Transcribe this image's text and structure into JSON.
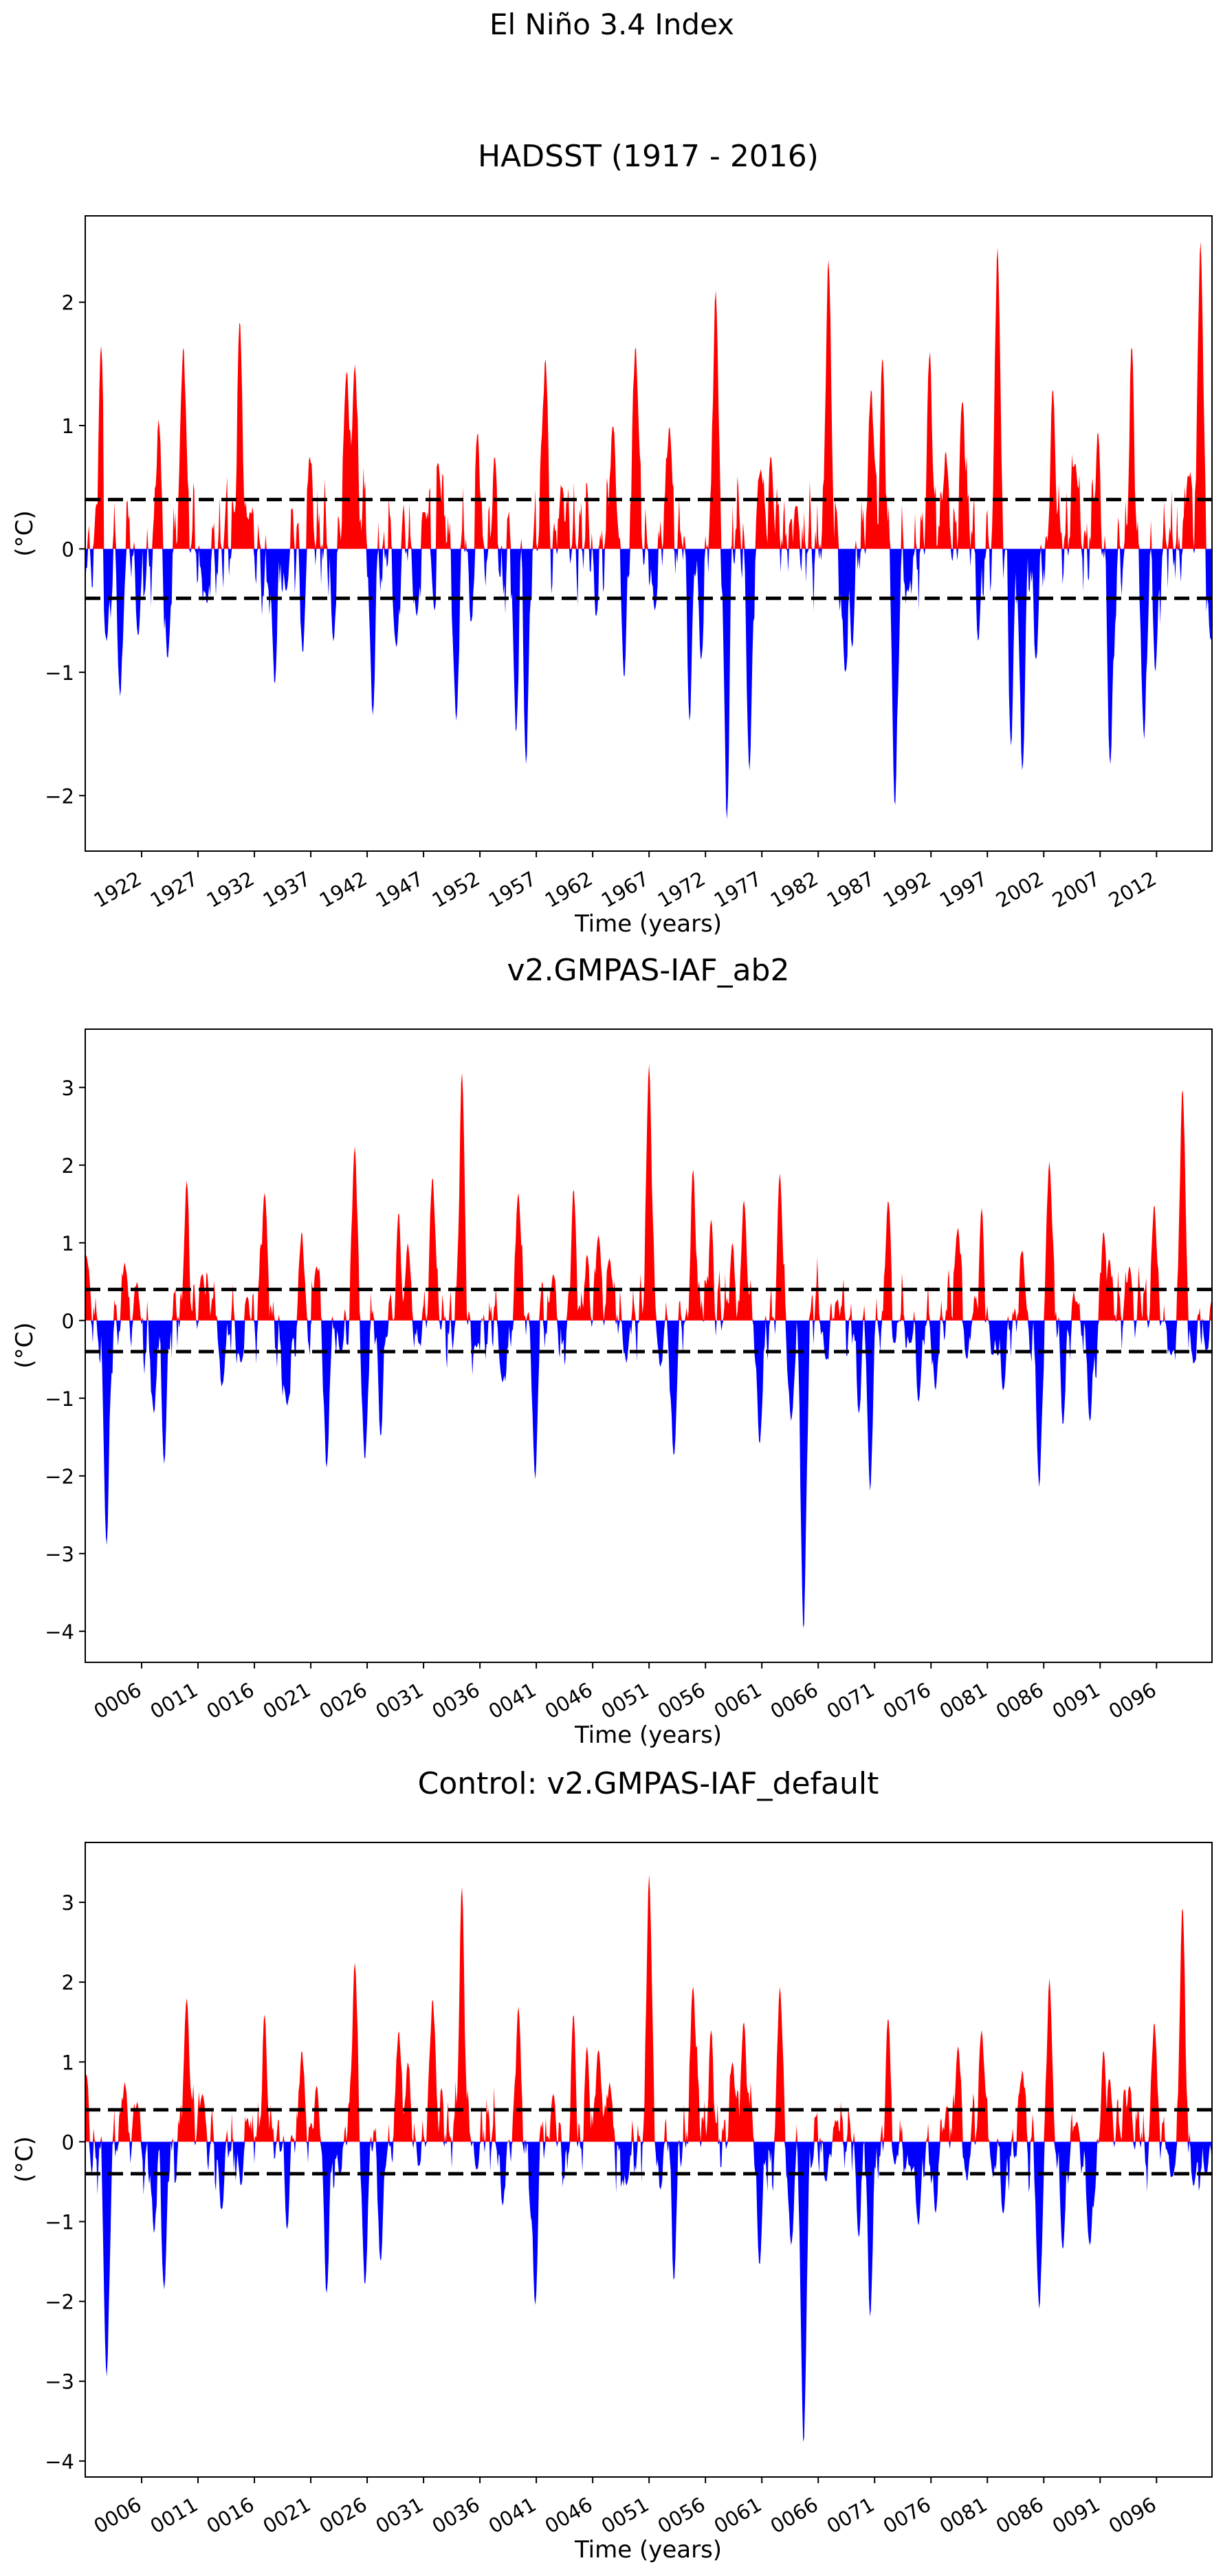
{
  "figure": {
    "suptitle": "El Niño 3.4 Index",
    "colors": {
      "positive": "#ff0000",
      "negative": "#0000ff",
      "threshold": "#000000",
      "frame": "#000000",
      "background": "#ffffff"
    }
  },
  "chart_data": [
    {
      "type": "area",
      "title": "HADSST (1917 - 2016)",
      "xlabel": "Time (years)",
      "ylabel": "(°C)",
      "x_start": 1917,
      "x_end": 2016,
      "xlim": [
        1917,
        2016.92
      ],
      "ylim": [
        -2.45,
        2.7
      ],
      "yticks": [
        -2,
        -1,
        0,
        1,
        2
      ],
      "xticks": [
        1922,
        1927,
        1932,
        1937,
        1942,
        1947,
        1952,
        1957,
        1962,
        1967,
        1972,
        1977,
        1982,
        1987,
        1992,
        1997,
        2002,
        2007,
        2012
      ],
      "xtick_labels": [
        "1922",
        "1927",
        "1932",
        "1937",
        "1942",
        "1947",
        "1952",
        "1957",
        "1962",
        "1967",
        "1972",
        "1977",
        "1982",
        "1987",
        "1992",
        "1997",
        "2002",
        "2007",
        "2012"
      ],
      "thresholds": [
        0.4,
        -0.4
      ],
      "baseline": 0.15,
      "noise": 0.35,
      "seed": 11,
      "extremes": [
        [
          1918.4,
          1.65
        ],
        [
          1918.9,
          -0.75
        ],
        [
          1920.1,
          -1.2
        ],
        [
          1921.7,
          -0.7
        ],
        [
          1923.5,
          1.05
        ],
        [
          1924.3,
          -0.9
        ],
        [
          1925.7,
          1.65
        ],
        [
          1927.8,
          -0.45
        ],
        [
          1930.7,
          1.85
        ],
        [
          1931.6,
          0.3
        ],
        [
          1933.8,
          -1.1
        ],
        [
          1934.8,
          -0.35
        ],
        [
          1936.3,
          -0.85
        ],
        [
          1936.9,
          0.75
        ],
        [
          1939.0,
          -0.75
        ],
        [
          1940.2,
          1.45
        ],
        [
          1940.9,
          1.5
        ],
        [
          1942.5,
          -1.35
        ],
        [
          1944.6,
          -0.8
        ],
        [
          1946.4,
          -0.55
        ],
        [
          1947.1,
          0.3
        ],
        [
          1948.0,
          -0.5
        ],
        [
          1948.3,
          0.7
        ],
        [
          1949.9,
          -1.4
        ],
        [
          1951.2,
          -0.6
        ],
        [
          1951.8,
          0.95
        ],
        [
          1953.3,
          0.75
        ],
        [
          1955.2,
          -1.5
        ],
        [
          1956.1,
          -1.75
        ],
        [
          1957.8,
          1.55
        ],
        [
          1959.3,
          0.5
        ],
        [
          1962.3,
          -0.55
        ],
        [
          1963.8,
          1.0
        ],
        [
          1964.8,
          -1.05
        ],
        [
          1965.8,
          1.65
        ],
        [
          1967.5,
          -0.5
        ],
        [
          1968.8,
          1.0
        ],
        [
          1970.6,
          -1.4
        ],
        [
          1971.6,
          -0.9
        ],
        [
          1972.9,
          2.1
        ],
        [
          1973.9,
          -2.2
        ],
        [
          1975.9,
          -1.8
        ],
        [
          1976.9,
          0.65
        ],
        [
          1977.8,
          0.75
        ],
        [
          1980.0,
          0.35
        ],
        [
          1982.9,
          2.35
        ],
        [
          1984.4,
          -1.0
        ],
        [
          1985.0,
          -0.8
        ],
        [
          1986.7,
          1.3
        ],
        [
          1987.7,
          1.55
        ],
        [
          1988.8,
          -2.1
        ],
        [
          1990.0,
          -0.35
        ],
        [
          1991.9,
          1.6
        ],
        [
          1993.3,
          0.8
        ],
        [
          1994.8,
          1.2
        ],
        [
          1996.2,
          -0.75
        ],
        [
          1997.9,
          2.45
        ],
        [
          1999.1,
          -1.6
        ],
        [
          2000.1,
          -1.8
        ],
        [
          2001.3,
          -0.9
        ],
        [
          2002.8,
          1.3
        ],
        [
          2004.8,
          0.7
        ],
        [
          2006.8,
          0.95
        ],
        [
          2007.9,
          -1.75
        ],
        [
          2009.8,
          1.65
        ],
        [
          2010.9,
          -1.55
        ],
        [
          2011.9,
          -1.0
        ],
        [
          2014.8,
          0.6
        ],
        [
          2015.9,
          2.5
        ],
        [
          2016.8,
          -0.75
        ]
      ]
    },
    {
      "type": "area",
      "title": "v2.GMPAS-IAF_ab2",
      "xlabel": "Time (years)",
      "ylabel": "(°C)",
      "x_start": 1,
      "x_end": 100,
      "xlim": [
        1,
        100.92
      ],
      "ylim": [
        -4.4,
        3.75
      ],
      "yticks": [
        -4,
        -3,
        -2,
        -1,
        0,
        1,
        2,
        3
      ],
      "xticks": [
        6,
        11,
        16,
        21,
        26,
        31,
        36,
        41,
        46,
        51,
        56,
        61,
        66,
        71,
        76,
        81,
        86,
        91,
        96
      ],
      "xtick_labels": [
        "0006",
        "0011",
        "0016",
        "0021",
        "0026",
        "0031",
        "0036",
        "0041",
        "0046",
        "0051",
        "0056",
        "0061",
        "0066",
        "0071",
        "0076",
        "0081",
        "0086",
        "0091",
        "0096"
      ],
      "thresholds": [
        0.4,
        -0.4
      ],
      "baseline": 0.0,
      "noise": 0.45,
      "seed": 23,
      "extremes": [
        [
          1.1,
          0.85
        ],
        [
          2.9,
          -2.9
        ],
        [
          4.5,
          0.75
        ],
        [
          5.6,
          0.5
        ],
        [
          7.1,
          -1.2
        ],
        [
          8.0,
          -1.85
        ],
        [
          10.0,
          1.8
        ],
        [
          11.4,
          0.6
        ],
        [
          13.1,
          -0.85
        ],
        [
          14.8,
          -0.55
        ],
        [
          15.4,
          0.3
        ],
        [
          16.9,
          1.65
        ],
        [
          18.9,
          -1.1
        ],
        [
          20.2,
          1.15
        ],
        [
          21.5,
          0.7
        ],
        [
          22.4,
          -1.9
        ],
        [
          23.6,
          -0.4
        ],
        [
          24.9,
          2.25
        ],
        [
          25.8,
          -1.8
        ],
        [
          27.2,
          -1.5
        ],
        [
          28.8,
          1.4
        ],
        [
          29.6,
          1.0
        ],
        [
          30.6,
          -0.3
        ],
        [
          31.8,
          1.85
        ],
        [
          34.4,
          3.2
        ],
        [
          35.7,
          -0.35
        ],
        [
          38.0,
          -0.8
        ],
        [
          39.4,
          1.65
        ],
        [
          40.9,
          -2.05
        ],
        [
          42.5,
          0.6
        ],
        [
          44.3,
          1.7
        ],
        [
          45.5,
          0.85
        ],
        [
          46.5,
          1.1
        ],
        [
          47.5,
          0.8
        ],
        [
          49.0,
          -0.55
        ],
        [
          51.0,
          3.3
        ],
        [
          52.0,
          -0.6
        ],
        [
          53.2,
          -1.75
        ],
        [
          54.9,
          1.95
        ],
        [
          56.5,
          1.3
        ],
        [
          58.4,
          1.0
        ],
        [
          59.4,
          1.55
        ],
        [
          60.8,
          -1.6
        ],
        [
          62.6,
          1.9
        ],
        [
          63.6,
          -1.3
        ],
        [
          64.7,
          -4.0
        ],
        [
          66.7,
          -0.5
        ],
        [
          67.6,
          0.25
        ],
        [
          69.6,
          -1.2
        ],
        [
          70.6,
          -2.2
        ],
        [
          72.2,
          1.55
        ],
        [
          72.8,
          -0.3
        ],
        [
          74.1,
          -0.3
        ],
        [
          74.9,
          -1.05
        ],
        [
          76.4,
          -0.9
        ],
        [
          78.4,
          1.2
        ],
        [
          79.2,
          -0.5
        ],
        [
          80.5,
          1.45
        ],
        [
          81.5,
          -0.45
        ],
        [
          82.4,
          -0.9
        ],
        [
          84.1,
          0.9
        ],
        [
          85.6,
          -2.15
        ],
        [
          86.5,
          2.05
        ],
        [
          87.7,
          -1.35
        ],
        [
          88.9,
          0.25
        ],
        [
          90.1,
          -1.3
        ],
        [
          91.3,
          1.15
        ],
        [
          91.8,
          0.8
        ],
        [
          93.6,
          0.7
        ],
        [
          95.8,
          1.5
        ],
        [
          97.3,
          -0.45
        ],
        [
          98.3,
          3.0
        ],
        [
          99.3,
          -0.55
        ],
        [
          100.4,
          -0.4
        ]
      ]
    },
    {
      "type": "area",
      "title": "Control: v2.GMPAS-IAF_default",
      "xlabel": "Time (years)",
      "ylabel": "(°C)",
      "x_start": 1,
      "x_end": 100,
      "xlim": [
        1,
        100.92
      ],
      "ylim": [
        -4.2,
        3.75
      ],
      "yticks": [
        -4,
        -3,
        -2,
        -1,
        0,
        1,
        2,
        3
      ],
      "xticks": [
        6,
        11,
        16,
        21,
        26,
        31,
        36,
        41,
        46,
        51,
        56,
        61,
        66,
        71,
        76,
        81,
        86,
        91,
        96
      ],
      "xtick_labels": [
        "0006",
        "0011",
        "0016",
        "0021",
        "0026",
        "0031",
        "0036",
        "0041",
        "0046",
        "0051",
        "0056",
        "0061",
        "0066",
        "0071",
        "0076",
        "0081",
        "0086",
        "0091",
        "0096"
      ],
      "thresholds": [
        0.4,
        -0.4
      ],
      "baseline": 0.0,
      "noise": 0.45,
      "seed": 37,
      "extremes": [
        [
          1.1,
          0.85
        ],
        [
          2.9,
          -2.95
        ],
        [
          4.5,
          0.75
        ],
        [
          5.6,
          0.5
        ],
        [
          7.1,
          -1.15
        ],
        [
          8.0,
          -1.85
        ],
        [
          10.0,
          1.8
        ],
        [
          11.4,
          0.6
        ],
        [
          13.1,
          -0.85
        ],
        [
          14.8,
          -0.55
        ],
        [
          15.4,
          0.3
        ],
        [
          16.9,
          1.6
        ],
        [
          18.9,
          -1.1
        ],
        [
          20.2,
          1.15
        ],
        [
          21.5,
          0.7
        ],
        [
          22.4,
          -1.9
        ],
        [
          23.6,
          -0.4
        ],
        [
          24.9,
          2.25
        ],
        [
          25.8,
          -1.8
        ],
        [
          27.2,
          -1.5
        ],
        [
          28.8,
          1.4
        ],
        [
          29.6,
          1.0
        ],
        [
          30.6,
          -0.3
        ],
        [
          31.8,
          1.8
        ],
        [
          34.4,
          3.2
        ],
        [
          35.7,
          -0.35
        ],
        [
          38.0,
          -0.8
        ],
        [
          39.4,
          1.7
        ],
        [
          40.9,
          -2.05
        ],
        [
          42.5,
          0.6
        ],
        [
          44.3,
          1.6
        ],
        [
          45.5,
          1.2
        ],
        [
          46.5,
          1.15
        ],
        [
          47.5,
          0.75
        ],
        [
          49.0,
          -0.55
        ],
        [
          51.0,
          3.35
        ],
        [
          52.0,
          -0.6
        ],
        [
          53.2,
          -1.75
        ],
        [
          54.9,
          1.95
        ],
        [
          56.5,
          1.4
        ],
        [
          58.4,
          1.0
        ],
        [
          59.4,
          1.5
        ],
        [
          60.8,
          -1.55
        ],
        [
          62.6,
          1.95
        ],
        [
          63.6,
          -1.3
        ],
        [
          64.7,
          -3.8
        ],
        [
          66.7,
          -0.5
        ],
        [
          67.6,
          0.25
        ],
        [
          69.6,
          -1.2
        ],
        [
          70.6,
          -2.2
        ],
        [
          72.2,
          1.55
        ],
        [
          72.8,
          -0.3
        ],
        [
          74.1,
          -0.3
        ],
        [
          74.9,
          -1.05
        ],
        [
          76.4,
          -0.9
        ],
        [
          78.4,
          1.2
        ],
        [
          79.2,
          -0.5
        ],
        [
          80.5,
          1.4
        ],
        [
          81.5,
          -0.45
        ],
        [
          82.4,
          -0.9
        ],
        [
          84.1,
          0.9
        ],
        [
          85.6,
          -2.1
        ],
        [
          86.5,
          2.05
        ],
        [
          87.7,
          -1.35
        ],
        [
          88.9,
          0.25
        ],
        [
          90.1,
          -1.3
        ],
        [
          91.3,
          1.15
        ],
        [
          91.8,
          0.8
        ],
        [
          93.6,
          0.7
        ],
        [
          95.8,
          1.5
        ],
        [
          97.3,
          -0.45
        ],
        [
          98.3,
          2.95
        ],
        [
          99.3,
          -0.55
        ],
        [
          100.4,
          -0.4
        ]
      ]
    }
  ]
}
